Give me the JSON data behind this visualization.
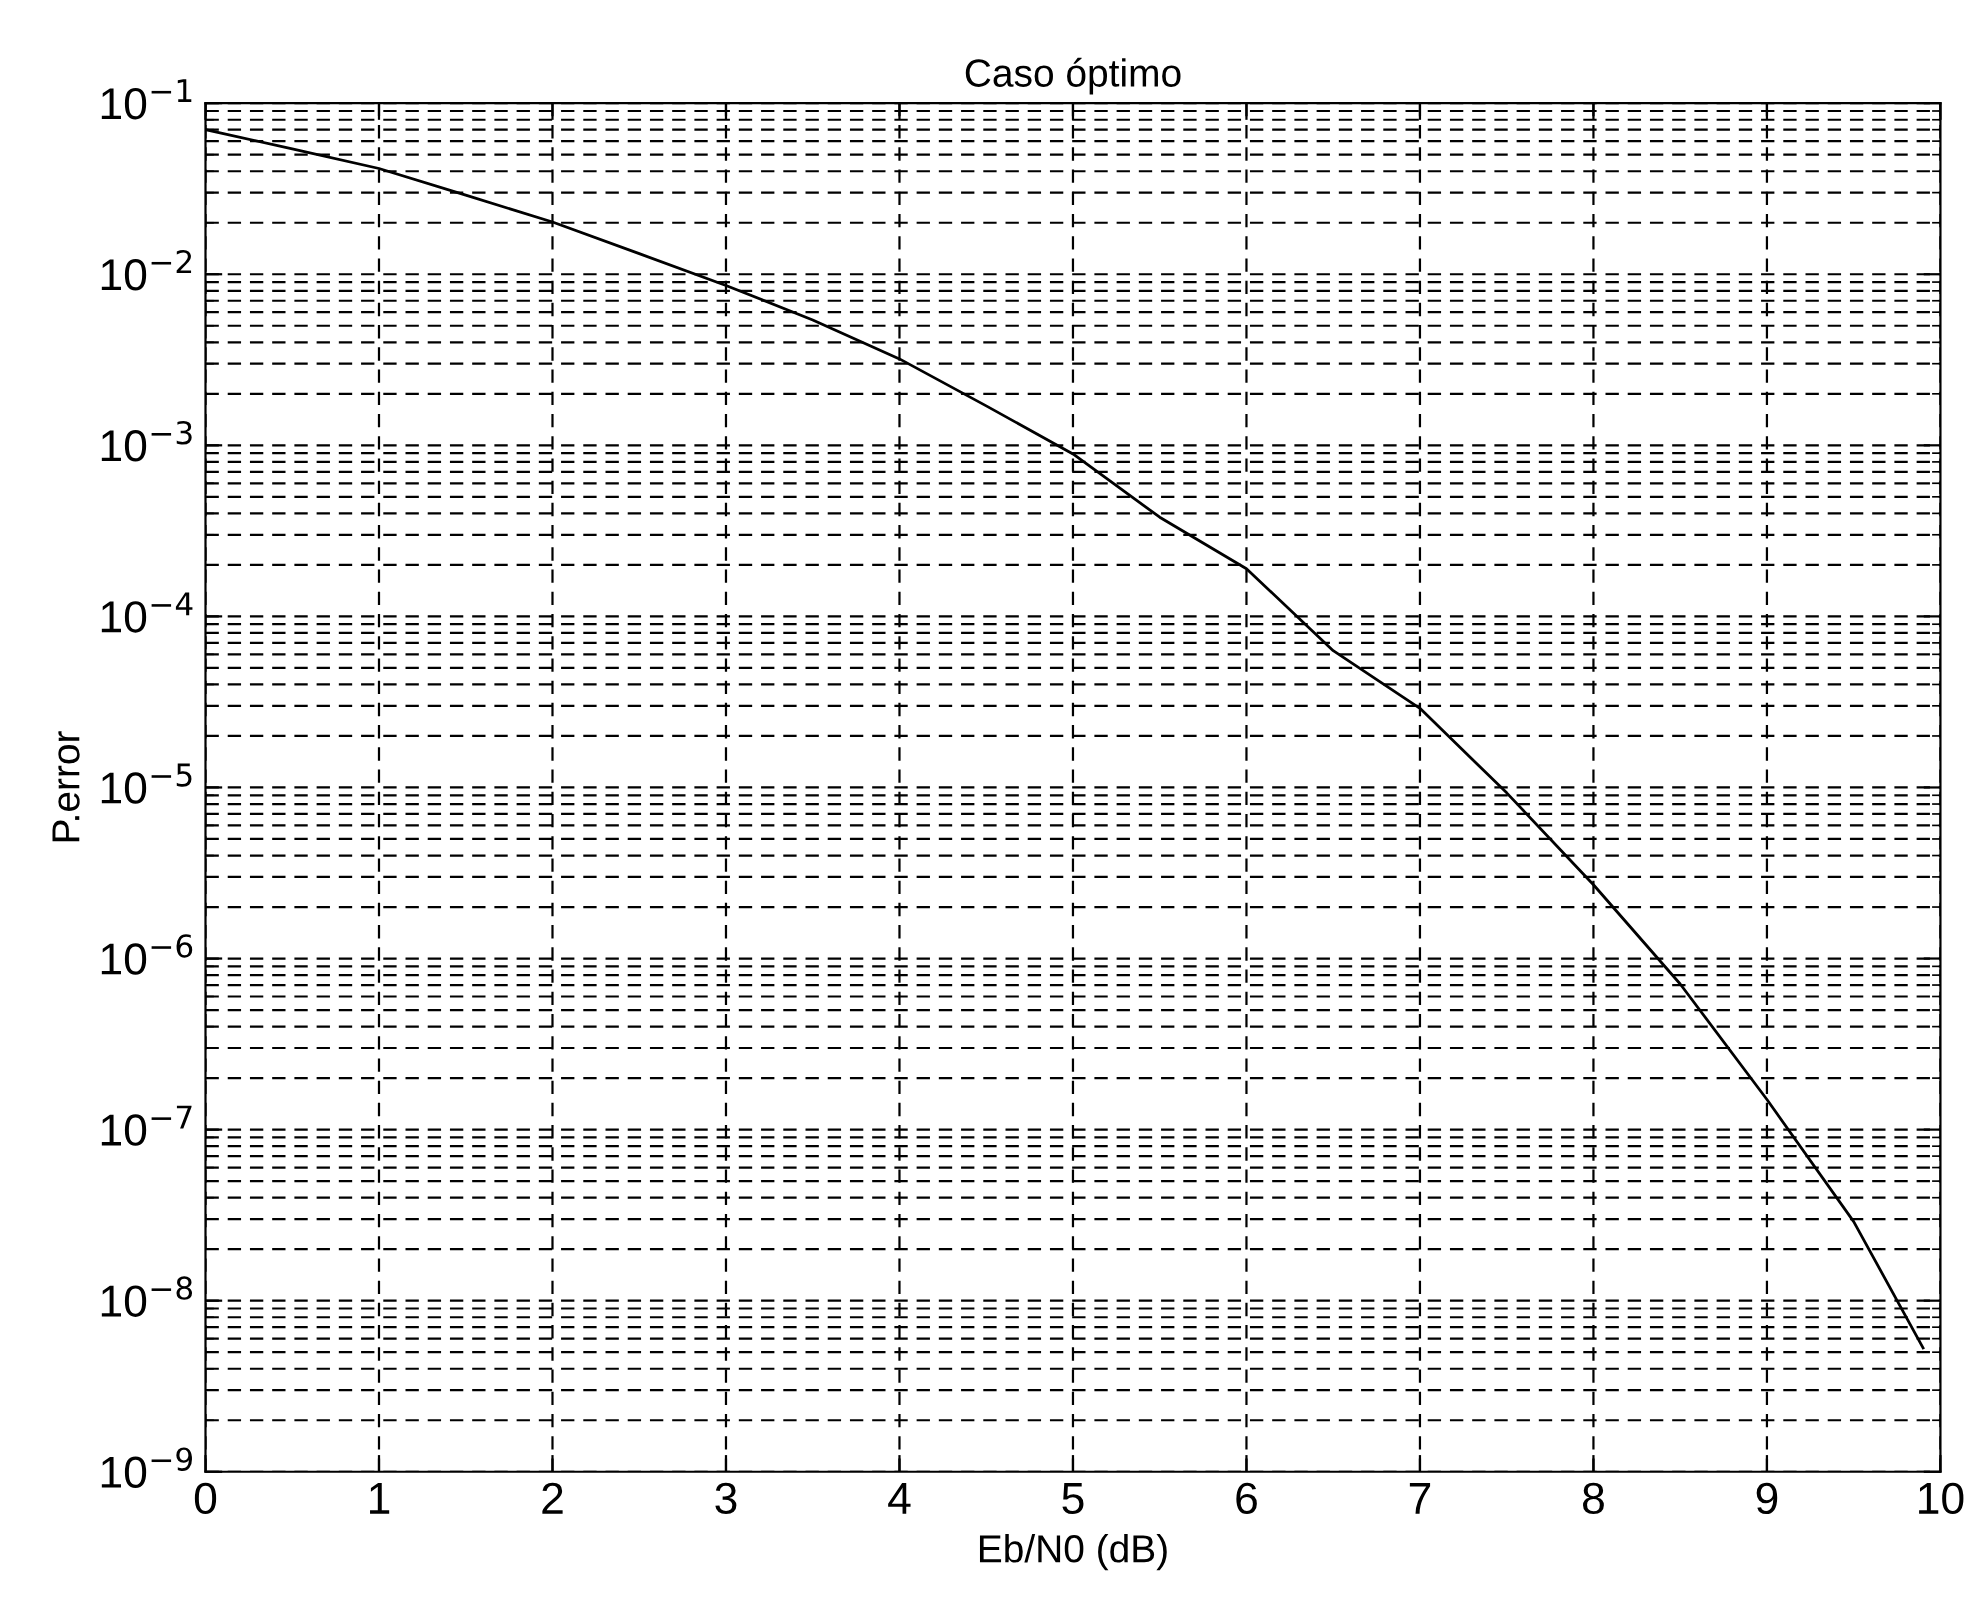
{
  "chart_data": {
    "type": "line",
    "title": "Caso óptimo",
    "xlabel": "Eb/N0 (dB)",
    "ylabel": "P.error",
    "series": [
      {
        "color": "#000000",
        "x": [
          0,
          0.5,
          1,
          1.5,
          2,
          2.5,
          3,
          3.5,
          4,
          4.5,
          5,
          5.5,
          6,
          6.5,
          7,
          7.5,
          8,
          8.5,
          9,
          9.5,
          9.9
        ],
        "values": [
          0.07,
          0.054,
          0.0415,
          0.029,
          0.0202,
          0.0132,
          0.0086,
          0.0054,
          0.0032,
          0.0017,
          0.00089,
          0.00038,
          0.00019,
          6.3e-05,
          2.9e-05,
          9.3e-06,
          2.7e-06,
          7.1e-07,
          1.5e-07,
          2.9e-08,
          5.3e-09
        ]
      }
    ],
    "log": "y",
    "xlim": [
      0,
      10
    ],
    "xticks": [
      0,
      1,
      2,
      3,
      4,
      5,
      6,
      7,
      8,
      9,
      10
    ],
    "ylim": [
      1e-09,
      0.1
    ],
    "yticks": [
      {
        "value": 1e-09,
        "label": "10$^{−9}$"
      },
      {
        "value": 1e-08,
        "label": "10$^{−8}$"
      },
      {
        "value": 1e-07,
        "label": "10$^{−7}$"
      },
      {
        "value": 1e-06,
        "label": "10$^{−6}$"
      },
      {
        "value": 1e-05,
        "label": "10$^{−5}$"
      },
      {
        "value": 0.0001,
        "label": "10$^{−4}$"
      },
      {
        "value": 0.001,
        "label": "10$^{−3}$"
      },
      {
        "value": 0.01,
        "label": "10$^{−2}$"
      },
      {
        "value": 0.1,
        "label": "10$^{−1}$"
      }
    ],
    "grid": true,
    "legend": false,
    "marker": "none",
    "line_style": "solid"
  }
}
